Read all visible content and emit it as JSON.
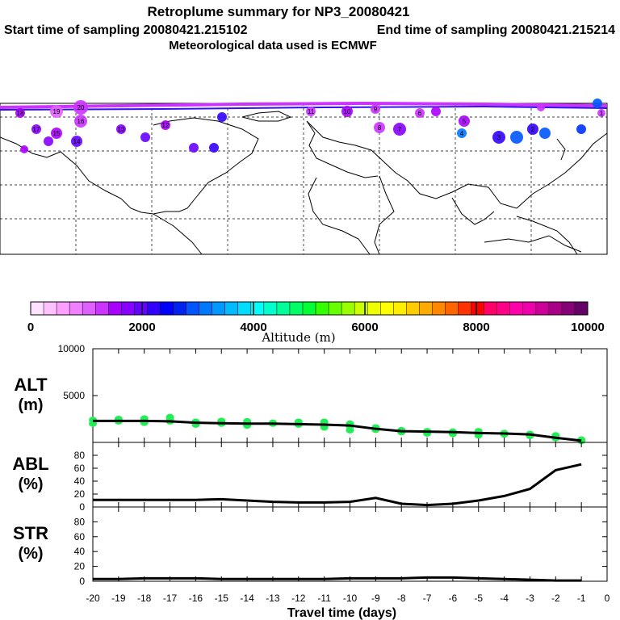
{
  "header": {
    "title": "Retroplume summary for NP3_20080421",
    "start_label": "Start time of sampling 20080421.215102",
    "end_label": "End time of sampling 20080421.215214",
    "met_label": "Meteorological data used is ECMWF"
  },
  "map": {
    "kind": "world map with plume cluster centroids",
    "centroid_numbers": [
      "20",
      "19",
      "18",
      "17",
      "16",
      "15",
      "14",
      "13",
      "12",
      "11",
      "10",
      "9",
      "8",
      "7",
      "6",
      "5",
      "4",
      "3",
      "2",
      "1"
    ]
  },
  "colorbar": {
    "title": "Altitude (m)",
    "tick_labels": [
      "0",
      "2000",
      "4000",
      "6000",
      "8000",
      "10000"
    ],
    "range": [
      0,
      10000
    ],
    "colors": [
      "#ffe0ff",
      "#ffc0ff",
      "#ff9fff",
      "#f080ff",
      "#e060ff",
      "#cc33ff",
      "#aa00ff",
      "#8800ff",
      "#6600ff",
      "#3300ff",
      "#0000ff",
      "#0022ee",
      "#0055ff",
      "#0077ff",
      "#0099ff",
      "#00bbff",
      "#00ddff",
      "#00ffff",
      "#00ffcc",
      "#00ff99",
      "#00ff66",
      "#00ff33",
      "#33ff00",
      "#66ff00",
      "#99ff00",
      "#ccff00",
      "#eeff00",
      "#ffff00",
      "#ffee00",
      "#ffcc00",
      "#ffaa00",
      "#ff8800",
      "#ff6600",
      "#ff3300",
      "#ff0000",
      "#ff0066",
      "#ff0088",
      "#ff00aa",
      "#ee00aa",
      "#cc0099",
      "#aa0088",
      "#880077",
      "#660066"
    ]
  },
  "chart_data": [
    {
      "type": "line",
      "name": "ALT",
      "ylabel": "ALT",
      "yunit": "(m)",
      "ylim": [
        0,
        10000
      ],
      "yticks": [
        "10000",
        "5000"
      ],
      "x": [
        -20,
        -19,
        -18,
        -17,
        -16,
        -15,
        -14,
        -13,
        -12,
        -11,
        -10,
        -9,
        -8,
        -7,
        -6,
        -5,
        -4,
        -3,
        -2,
        -1
      ],
      "series": [
        {
          "name": "mean altitude",
          "color": "#000000",
          "values": [
            2300,
            2300,
            2300,
            2250,
            2100,
            2050,
            2000,
            2000,
            1950,
            1900,
            1800,
            1450,
            1200,
            1150,
            1100,
            1000,
            950,
            850,
            500,
            180
          ]
        }
      ],
      "scatter": {
        "color": "#22ee55",
        "points": [
          [
            -20,
            2400
          ],
          [
            -20,
            2000
          ],
          [
            -19,
            2250
          ],
          [
            -19,
            2500
          ],
          [
            -18,
            2100
          ],
          [
            -18,
            2550
          ],
          [
            -18,
            2350
          ],
          [
            -17,
            2700
          ],
          [
            -17,
            2250
          ],
          [
            -17,
            2500
          ],
          [
            -16,
            2200
          ],
          [
            -16,
            1900
          ],
          [
            -15,
            2300
          ],
          [
            -15,
            2000
          ],
          [
            -14,
            2250
          ],
          [
            -14,
            1800
          ],
          [
            -13,
            2100
          ],
          [
            -13,
            2000
          ],
          [
            -12,
            2200
          ],
          [
            -12,
            1900
          ],
          [
            -11,
            2200
          ],
          [
            -11,
            1600
          ],
          [
            -11,
            1900
          ],
          [
            -10,
            1700
          ],
          [
            -10,
            1300
          ],
          [
            -10,
            2000
          ],
          [
            -9,
            1600
          ],
          [
            -9,
            1350
          ],
          [
            -8,
            1300
          ],
          [
            -8,
            1100
          ],
          [
            -8,
            1250
          ],
          [
            -7,
            1200
          ],
          [
            -7,
            950
          ],
          [
            -6,
            1050
          ],
          [
            -6,
            1150
          ],
          [
            -6,
            900
          ],
          [
            -5,
            900
          ],
          [
            -5,
            1200
          ],
          [
            -5,
            750
          ],
          [
            -4,
            850
          ],
          [
            -4,
            1000
          ],
          [
            -3,
            900
          ],
          [
            -3,
            700
          ],
          [
            -2,
            750
          ],
          [
            -2,
            450
          ],
          [
            -1,
            300
          ],
          [
            -1,
            150
          ]
        ]
      }
    },
    {
      "type": "line",
      "name": "ABL",
      "ylabel": "ABL",
      "yunit": "(%)",
      "ylim": [
        0,
        100
      ],
      "yticks": [
        "80",
        "60",
        "40",
        "20",
        "0"
      ],
      "x": [
        -20,
        -19,
        -18,
        -17,
        -16,
        -15,
        -14,
        -13,
        -12,
        -11,
        -10,
        -9,
        -8,
        -7,
        -6,
        -5,
        -4,
        -3,
        -2,
        -1
      ],
      "series": [
        {
          "name": "ABL fraction",
          "color": "#000000",
          "values": [
            11,
            11,
            11,
            11,
            11,
            12,
            10,
            8,
            7,
            7,
            8,
            14,
            5,
            3,
            5,
            10,
            17,
            28,
            57,
            66
          ]
        }
      ]
    },
    {
      "type": "line",
      "name": "STR",
      "ylabel": "STR",
      "yunit": "(%)",
      "ylim": [
        0,
        100
      ],
      "yticks": [
        "80",
        "60",
        "40",
        "20",
        "0"
      ],
      "x": [
        -20,
        -19,
        -18,
        -17,
        -16,
        -15,
        -14,
        -13,
        -12,
        -11,
        -10,
        -9,
        -8,
        -7,
        -6,
        -5,
        -4,
        -3,
        -2,
        -1
      ],
      "series": [
        {
          "name": "stratospheric fraction",
          "color": "#000000",
          "values": [
            3,
            3,
            4,
            4,
            4,
            3,
            3,
            3,
            3,
            3,
            4,
            4,
            4,
            5,
            5,
            4,
            3,
            2,
            1,
            1
          ]
        }
      ],
      "xlabel": "Travel time (days)",
      "xticks": [
        "-20",
        "-19",
        "-18",
        "-17",
        "-16",
        "-15",
        "-14",
        "-13",
        "-12",
        "-11",
        "-10",
        "-9",
        "-8",
        "-7",
        "-6",
        "-5",
        "-4",
        "-3",
        "-2",
        "-1",
        "0"
      ]
    }
  ]
}
